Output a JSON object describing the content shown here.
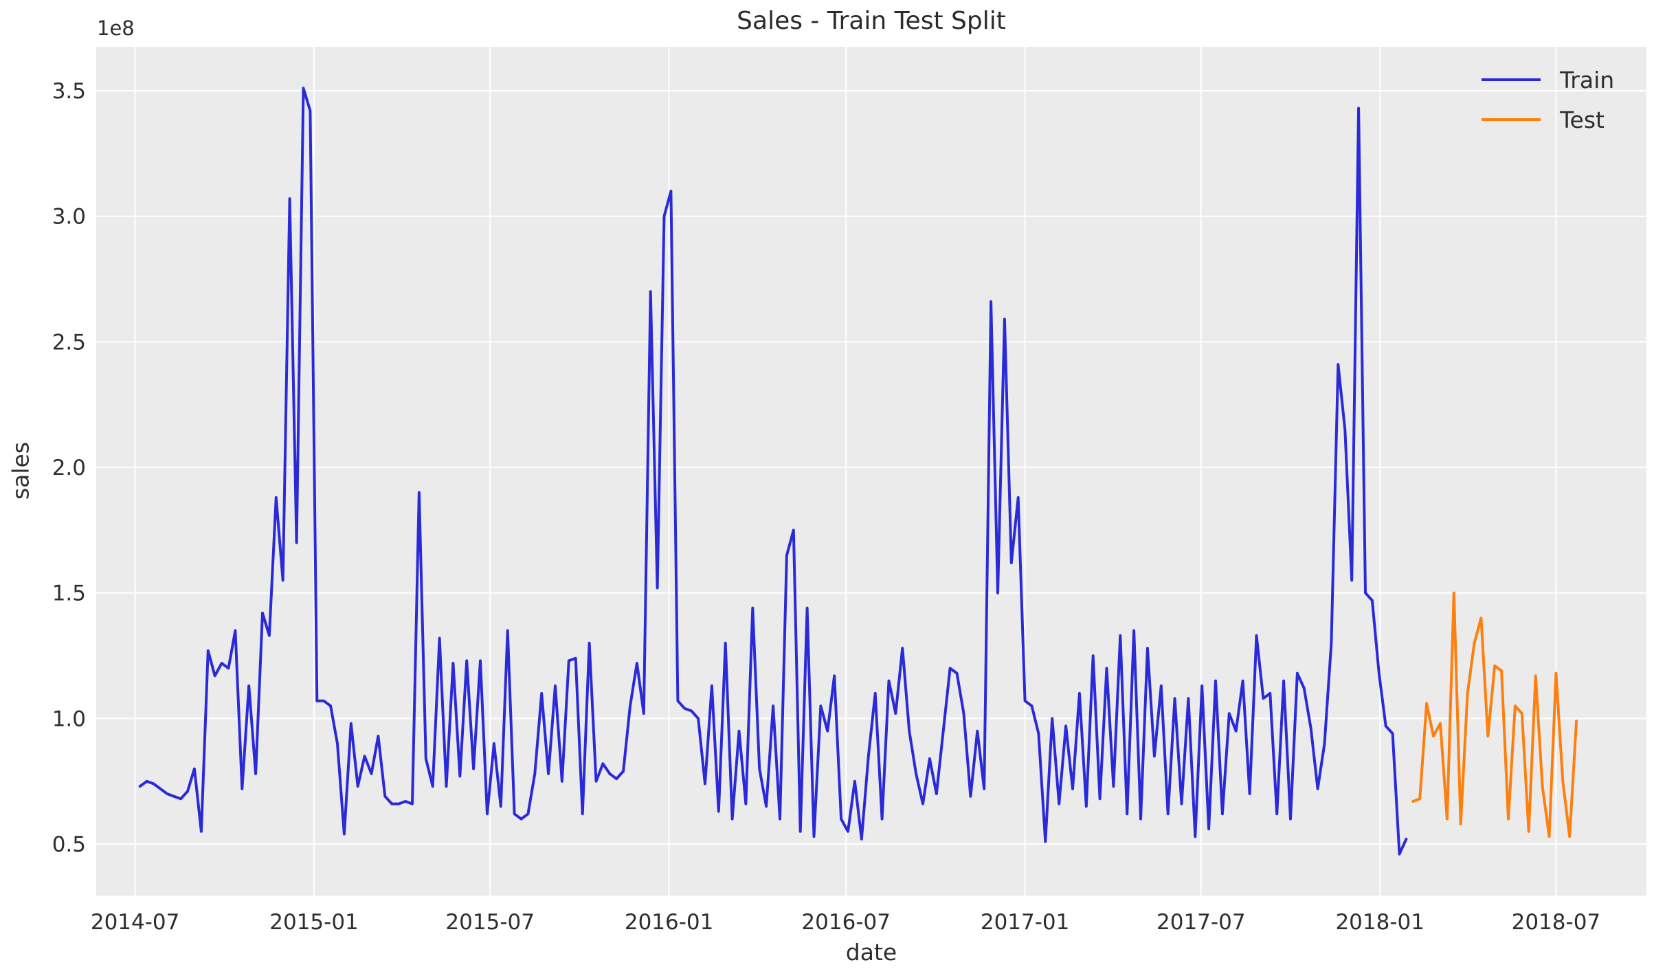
{
  "title": "Sales - Train Test Split",
  "axes": {
    "xlabel": "date",
    "ylabel": "sales",
    "offset_text": "1e8"
  },
  "legend": {
    "entries": [
      {
        "label": "Train",
        "color": "#2a2ad9"
      },
      {
        "label": "Test",
        "color": "#ff7f0e"
      }
    ],
    "position": "upper right",
    "frame": false
  },
  "style": {
    "figure_bg": "#ffffff",
    "axes_bg": "#ebebeb",
    "grid_color": "#ffffff",
    "text_color": "#2e2e2e",
    "train_color": "#2a2ad9",
    "test_color": "#ff7f0e"
  },
  "chart_data": {
    "type": "line",
    "title": "Sales - Train Test Split",
    "xlabel": "date",
    "ylabel": "sales",
    "value_scale": 100000000,
    "value_scale_label": "1e8",
    "grid": true,
    "legend_position": "upper right",
    "x_ticks": [
      {
        "label": "2014-07",
        "date": "2014-07-01"
      },
      {
        "label": "2015-01",
        "date": "2015-01-01"
      },
      {
        "label": "2015-07",
        "date": "2015-07-01"
      },
      {
        "label": "2016-01",
        "date": "2016-01-01"
      },
      {
        "label": "2016-07",
        "date": "2016-07-01"
      },
      {
        "label": "2017-01",
        "date": "2017-01-01"
      },
      {
        "label": "2017-07",
        "date": "2017-07-01"
      },
      {
        "label": "2018-01",
        "date": "2018-01-01"
      },
      {
        "label": "2018-07",
        "date": "2018-07-01"
      }
    ],
    "y_ticks": [
      0.5,
      1.0,
      1.5,
      2.0,
      2.5,
      3.0,
      3.5
    ],
    "ylim": [
      0.295,
      3.675
    ],
    "xlim": [
      "2014-05-22",
      "2018-10-02"
    ],
    "frequency": "weekly",
    "series": [
      {
        "name": "Train",
        "color": "#2a2ad9",
        "start_date": "2014-07-06",
        "values": [
          0.73,
          0.75,
          0.74,
          0.72,
          0.7,
          0.69,
          0.68,
          0.71,
          0.8,
          0.55,
          1.27,
          1.17,
          1.22,
          1.2,
          1.35,
          0.72,
          1.13,
          0.78,
          1.42,
          1.33,
          1.88,
          1.55,
          3.07,
          1.7,
          3.51,
          3.42,
          1.07,
          1.07,
          1.05,
          0.9,
          0.54,
          0.98,
          0.73,
          0.85,
          0.78,
          0.93,
          0.69,
          0.66,
          0.66,
          0.67,
          0.66,
          1.9,
          0.84,
          0.73,
          1.32,
          0.73,
          1.22,
          0.77,
          1.23,
          0.8,
          1.23,
          0.62,
          0.9,
          0.65,
          1.35,
          0.62,
          0.6,
          0.62,
          0.78,
          1.1,
          0.78,
          1.13,
          0.75,
          1.23,
          1.24,
          0.62,
          1.3,
          0.75,
          0.82,
          0.78,
          0.76,
          0.79,
          1.05,
          1.22,
          1.02,
          2.7,
          1.52,
          3.0,
          3.1,
          1.07,
          1.04,
          1.03,
          1.0,
          0.74,
          1.13,
          0.63,
          1.3,
          0.6,
          0.95,
          0.66,
          1.44,
          0.8,
          0.65,
          1.05,
          0.6,
          1.65,
          1.75,
          0.55,
          1.44,
          0.53,
          1.05,
          0.95,
          1.17,
          0.6,
          0.55,
          0.75,
          0.52,
          0.85,
          1.1,
          0.6,
          1.15,
          1.02,
          1.28,
          0.95,
          0.78,
          0.66,
          0.84,
          0.7,
          0.95,
          1.2,
          1.18,
          1.02,
          0.69,
          0.95,
          0.72,
          2.66,
          1.5,
          2.59,
          1.62,
          1.88,
          1.07,
          1.05,
          0.94,
          0.51,
          1.0,
          0.66,
          0.97,
          0.72,
          1.1,
          0.65,
          1.25,
          0.68,
          1.2,
          0.73,
          1.33,
          0.62,
          1.35,
          0.6,
          1.28,
          0.85,
          1.13,
          0.62,
          1.08,
          0.66,
          1.08,
          0.53,
          1.13,
          0.56,
          1.15,
          0.62,
          1.02,
          0.95,
          1.15,
          0.7,
          1.33,
          1.08,
          1.1,
          0.62,
          1.15,
          0.6,
          1.18,
          1.12,
          0.96,
          0.72,
          0.9,
          1.3,
          2.41,
          2.15,
          1.55,
          3.43,
          1.5,
          1.47,
          1.18,
          0.97,
          0.94,
          0.46,
          0.52
        ]
      },
      {
        "name": "Test",
        "color": "#ff7f0e",
        "start_date": "2018-02-04",
        "values": [
          0.67,
          0.68,
          1.06,
          0.93,
          0.98,
          0.6,
          1.5,
          0.58,
          1.1,
          1.3,
          1.4,
          0.93,
          1.21,
          1.19,
          0.6,
          1.05,
          1.02,
          0.55,
          1.17,
          0.73,
          0.53,
          1.18,
          0.75,
          0.53,
          0.99
        ]
      }
    ]
  }
}
